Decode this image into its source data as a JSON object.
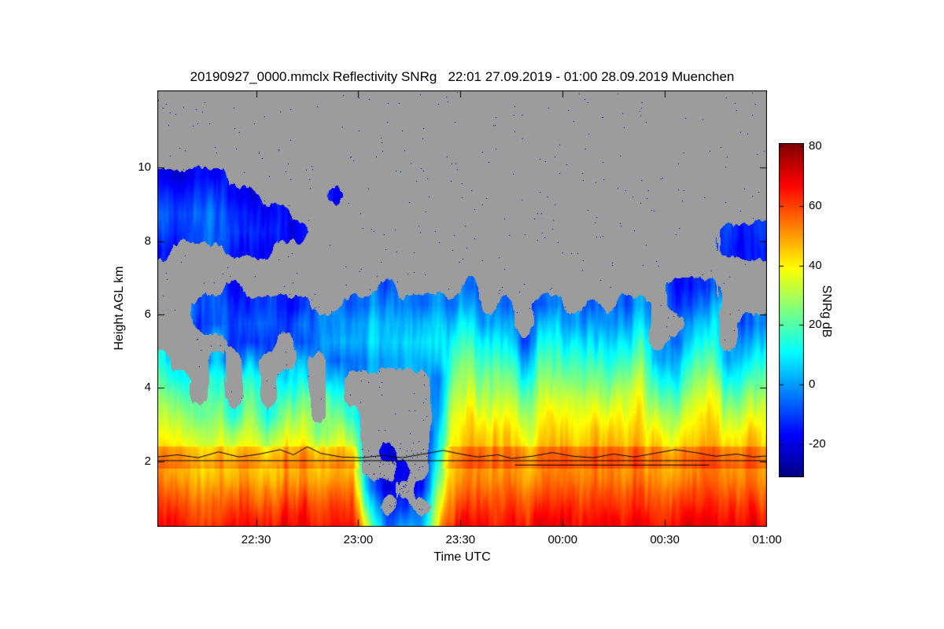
{
  "chart_data": {
    "type": "heatmap",
    "title": "20190927_0000.mmclx Reflectivity SNRg   22:01 27.09.2019 - 01:00 28.09.2019 Muenchen",
    "xlabel": "Time UTC",
    "ylabel": "Height AGL km",
    "colorbar_label": "SNRg dB",
    "colormap": "jet",
    "no_echo_color": "#9c9c9c",
    "value_range_db": [
      -31,
      81
    ],
    "x_minutes_range": [
      0,
      179
    ],
    "ylim_km": [
      0.22,
      12.1
    ],
    "x_ticks": [
      {
        "minute": 29,
        "label": "22:30"
      },
      {
        "minute": 59,
        "label": "23:00"
      },
      {
        "minute": 89,
        "label": "23:30"
      },
      {
        "minute": 119,
        "label": "00:00"
      },
      {
        "minute": 149,
        "label": "00:30"
      },
      {
        "minute": 179,
        "label": "01:00"
      }
    ],
    "y_ticks_km": [
      2,
      4,
      6,
      8,
      10
    ],
    "colorbar_ticks_db": [
      80,
      60,
      40,
      20,
      0,
      -20
    ],
    "grid": {
      "time_start_min": 0,
      "time_step_min": 5,
      "heights_km": [
        0.25,
        0.75,
        1.25,
        1.75,
        2.25,
        2.75,
        3.25,
        3.75,
        4.25,
        4.75,
        5.25,
        5.75,
        6.25,
        6.75,
        7.25,
        7.75,
        8.25,
        8.75,
        9.25,
        9.75,
        10.25,
        10.75,
        11.25,
        11.75
      ],
      "snr_db_columns": [
        [
          62,
          58,
          54,
          50,
          44,
          38,
          32,
          26,
          18,
          10,
          null,
          null,
          null,
          null,
          null,
          -18,
          -12,
          -10,
          -14,
          -20,
          null,
          null,
          null,
          null
        ],
        [
          60,
          57,
          53,
          48,
          42,
          36,
          30,
          22,
          12,
          null,
          null,
          null,
          null,
          null,
          null,
          null,
          -10,
          -8,
          -12,
          -18,
          null,
          null,
          null,
          null
        ],
        [
          58,
          55,
          50,
          45,
          38,
          30,
          20,
          null,
          null,
          null,
          null,
          -15,
          -12,
          null,
          null,
          null,
          -8,
          -6,
          -10,
          -16,
          null,
          null,
          null,
          null
        ],
        [
          61,
          58,
          54,
          49,
          43,
          36,
          28,
          20,
          12,
          5,
          null,
          -10,
          -8,
          null,
          null,
          null,
          -9,
          -7,
          -12,
          -18,
          null,
          null,
          null,
          null
        ],
        [
          59,
          56,
          51,
          46,
          38,
          28,
          15,
          null,
          null,
          null,
          -12,
          -8,
          -10,
          -16,
          null,
          -14,
          -8,
          -10,
          -15,
          null,
          null,
          null,
          null,
          null
        ],
        [
          62,
          59,
          55,
          50,
          44,
          38,
          32,
          25,
          17,
          9,
          -8,
          -5,
          -9,
          null,
          null,
          -12,
          -9,
          -11,
          -17,
          null,
          null,
          null,
          null,
          null
        ],
        [
          58,
          55,
          50,
          44,
          36,
          26,
          12,
          null,
          null,
          null,
          -10,
          -6,
          -11,
          null,
          null,
          -16,
          -12,
          -16,
          null,
          null,
          null,
          null,
          null,
          null
        ],
        [
          60,
          57,
          53,
          48,
          42,
          35,
          27,
          18,
          8,
          null,
          null,
          -7,
          -10,
          null,
          null,
          null,
          -14,
          -15,
          null,
          null,
          null,
          null,
          null,
          null
        ],
        [
          61,
          58,
          54,
          49,
          43,
          37,
          30,
          22,
          14,
          6,
          -6,
          -4,
          -12,
          null,
          null,
          null,
          -18,
          null,
          null,
          null,
          null,
          null,
          null,
          null
        ],
        [
          57,
          54,
          49,
          43,
          34,
          22,
          null,
          null,
          null,
          null,
          -5,
          -6,
          null,
          null,
          null,
          null,
          null,
          null,
          null,
          null,
          null,
          null,
          null,
          null
        ],
        [
          59,
          56,
          52,
          47,
          40,
          32,
          23,
          12,
          4,
          -10,
          -3,
          -6,
          null,
          null,
          null,
          null,
          null,
          null,
          -20,
          null,
          null,
          null,
          null,
          null
        ],
        [
          58,
          55,
          51,
          45,
          37,
          27,
          15,
          null,
          null,
          -4,
          2,
          0,
          -8,
          null,
          null,
          null,
          null,
          null,
          null,
          null,
          null,
          null,
          null,
          null
        ],
        [
          20,
          5,
          -8,
          null,
          null,
          null,
          null,
          null,
          null,
          0,
          5,
          3,
          -4,
          null,
          null,
          null,
          null,
          null,
          null,
          null,
          null,
          null,
          null,
          null
        ],
        [
          -12,
          null,
          -18,
          null,
          -20,
          null,
          null,
          null,
          null,
          2,
          6,
          4,
          -2,
          -10,
          null,
          null,
          null,
          null,
          null,
          null,
          null,
          null,
          null,
          null
        ],
        [
          -10,
          -20,
          null,
          -22,
          null,
          null,
          null,
          null,
          null,
          3,
          7,
          5,
          0,
          null,
          null,
          null,
          null,
          null,
          null,
          null,
          null,
          null,
          null,
          null
        ],
        [
          -8,
          null,
          -20,
          null,
          null,
          null,
          null,
          null,
          null,
          1,
          5,
          2,
          -6,
          null,
          null,
          null,
          null,
          null,
          null,
          null,
          null,
          null,
          null,
          null
        ],
        [
          35,
          30,
          25,
          18,
          10,
          5,
          0,
          -3,
          -5,
          4,
          8,
          5,
          -2,
          null,
          null,
          null,
          null,
          null,
          null,
          null,
          null,
          null,
          null,
          null
        ],
        [
          60,
          56,
          52,
          48,
          44,
          40,
          36,
          30,
          24,
          18,
          12,
          5,
          -4,
          null,
          null,
          null,
          null,
          null,
          null,
          null,
          null,
          null,
          null,
          null
        ],
        [
          62,
          58,
          55,
          52,
          48,
          44,
          40,
          34,
          28,
          22,
          15,
          8,
          0,
          -10,
          null,
          null,
          null,
          null,
          null,
          null,
          null,
          null,
          null,
          null
        ],
        [
          60,
          57,
          53,
          50,
          46,
          42,
          36,
          30,
          24,
          16,
          8,
          0,
          null,
          null,
          null,
          null,
          null,
          null,
          null,
          null,
          null,
          null,
          null,
          null
        ],
        [
          63,
          60,
          56,
          52,
          48,
          45,
          40,
          35,
          28,
          20,
          12,
          4,
          -6,
          null,
          null,
          null,
          null,
          null,
          null,
          null,
          null,
          null,
          null,
          null
        ],
        [
          58,
          55,
          51,
          47,
          42,
          36,
          28,
          20,
          10,
          2,
          -8,
          null,
          null,
          null,
          null,
          null,
          null,
          null,
          null,
          null,
          null,
          null,
          null,
          null
        ],
        [
          61,
          58,
          54,
          50,
          46,
          42,
          38,
          32,
          25,
          18,
          10,
          2,
          -8,
          null,
          null,
          null,
          null,
          null,
          null,
          null,
          null,
          null,
          null,
          null
        ],
        [
          62,
          59,
          56,
          52,
          48,
          44,
          40,
          34,
          27,
          20,
          13,
          6,
          -3,
          null,
          null,
          null,
          null,
          null,
          null,
          null,
          null,
          null,
          null,
          null
        ],
        [
          60,
          58,
          54,
          50,
          46,
          41,
          36,
          30,
          22,
          14,
          6,
          -2,
          null,
          null,
          null,
          null,
          null,
          null,
          null,
          null,
          null,
          null,
          null,
          null
        ],
        [
          63,
          60,
          57,
          53,
          49,
          45,
          40,
          34,
          26,
          18,
          10,
          3,
          -6,
          null,
          null,
          null,
          null,
          null,
          null,
          null,
          null,
          null,
          null,
          null
        ],
        [
          61,
          58,
          55,
          51,
          47,
          42,
          36,
          28,
          20,
          12,
          4,
          -5,
          null,
          null,
          null,
          null,
          null,
          null,
          null,
          null,
          null,
          null,
          null,
          null
        ],
        [
          62,
          59,
          56,
          52,
          48,
          43,
          38,
          32,
          25,
          17,
          9,
          1,
          -8,
          null,
          null,
          null,
          null,
          null,
          null,
          null,
          null,
          null,
          null,
          null
        ],
        [
          63,
          60,
          57,
          53,
          49,
          45,
          41,
          36,
          30,
          22,
          14,
          6,
          -2,
          null,
          null,
          null,
          null,
          null,
          null,
          null,
          null,
          null,
          null,
          null
        ],
        [
          59,
          56,
          52,
          48,
          43,
          37,
          29,
          20,
          10,
          0,
          null,
          null,
          null,
          null,
          null,
          null,
          null,
          null,
          null,
          null,
          null,
          null,
          null,
          null
        ],
        [
          60,
          57,
          53,
          49,
          44,
          38,
          30,
          22,
          12,
          4,
          -4,
          null,
          -12,
          -15,
          null,
          null,
          null,
          null,
          null,
          null,
          null,
          null,
          null,
          null
        ],
        [
          62,
          59,
          56,
          52,
          48,
          44,
          40,
          34,
          27,
          19,
          11,
          4,
          -5,
          -12,
          null,
          null,
          null,
          null,
          null,
          null,
          null,
          null,
          null,
          null
        ],
        [
          64,
          61,
          58,
          55,
          51,
          47,
          43,
          38,
          32,
          25,
          17,
          9,
          1,
          -8,
          null,
          null,
          null,
          null,
          null,
          null,
          null,
          null,
          null,
          null
        ],
        [
          60,
          57,
          53,
          49,
          44,
          38,
          30,
          21,
          11,
          2,
          null,
          null,
          null,
          null,
          null,
          -14,
          -12,
          null,
          null,
          null,
          null,
          null,
          null,
          null
        ],
        [
          61,
          58,
          54,
          50,
          45,
          40,
          33,
          25,
          16,
          8,
          0,
          -8,
          null,
          null,
          null,
          -12,
          -10,
          null,
          null,
          null,
          null,
          null,
          null,
          null
        ],
        [
          62,
          59,
          56,
          52,
          47,
          42,
          36,
          29,
          21,
          13,
          5,
          -3,
          null,
          null,
          null,
          -15,
          -13,
          null,
          null,
          null,
          null,
          null,
          null,
          null
        ]
      ]
    },
    "overlay_lines": [
      {
        "name": "wiggly-level-line",
        "points": [
          [
            0,
            2.12
          ],
          [
            6,
            2.18
          ],
          [
            12,
            2.1
          ],
          [
            18,
            2.26
          ],
          [
            24,
            2.12
          ],
          [
            30,
            2.2
          ],
          [
            36,
            2.32
          ],
          [
            40,
            2.18
          ],
          [
            44,
            2.4
          ],
          [
            48,
            2.22
          ],
          [
            54,
            2.12
          ],
          [
            60,
            2.1
          ],
          [
            66,
            2.16
          ],
          [
            72,
            2.1
          ],
          [
            78,
            2.2
          ],
          [
            84,
            2.3
          ],
          [
            88,
            2.22
          ],
          [
            94,
            2.12
          ],
          [
            100,
            2.18
          ],
          [
            104,
            2.08
          ],
          [
            110,
            2.14
          ],
          [
            116,
            2.24
          ],
          [
            122,
            2.14
          ],
          [
            128,
            2.1
          ],
          [
            134,
            2.2
          ],
          [
            140,
            2.12
          ],
          [
            146,
            2.22
          ],
          [
            152,
            2.32
          ],
          [
            158,
            2.24
          ],
          [
            164,
            2.14
          ],
          [
            170,
            2.2
          ],
          [
            175,
            2.12
          ],
          [
            179,
            2.15
          ]
        ]
      },
      {
        "name": "straight-level-line",
        "points": [
          [
            0,
            2.02
          ],
          [
            179,
            2.02
          ]
        ]
      },
      {
        "name": "lower-level-segment",
        "points": [
          [
            105,
            1.9
          ],
          [
            162,
            1.9
          ]
        ]
      }
    ],
    "render_hints": {
      "speckle_density": 0.0015,
      "speckle_value_db": -22,
      "speckle_region": {
        "t": [
          58,
          82
        ],
        "h": [
          0.2,
          2.4
        ],
        "density": 0.02
      },
      "bright_band": {
        "h_range": [
          1.8,
          2.4
        ],
        "boost_db": 7
      }
    }
  }
}
